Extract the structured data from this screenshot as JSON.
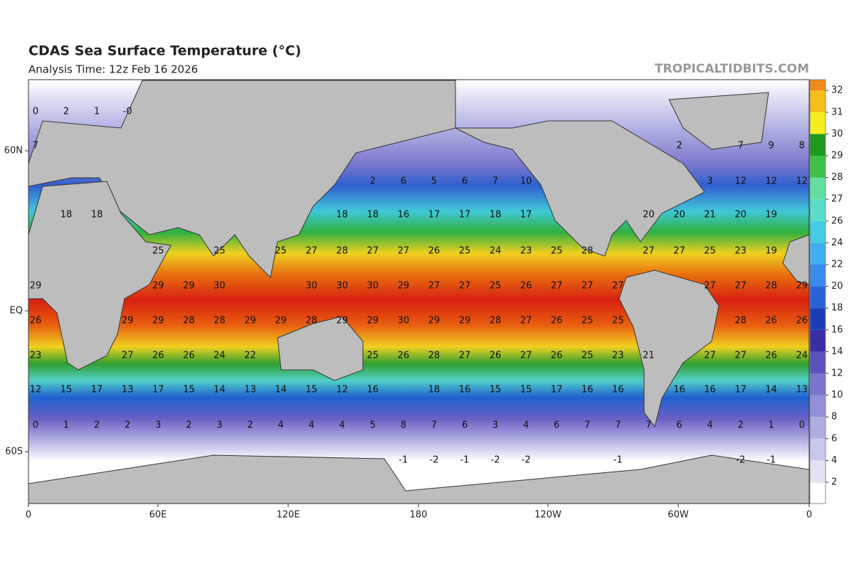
{
  "header": {
    "title": "CDAS Sea Surface Temperature (°C)",
    "subtitle": "Analysis Time: 12z Feb 16 2026",
    "watermark": "TROPICALTIDBITS.COM"
  },
  "map": {
    "x_labels": [
      "0",
      "60E",
      "120E",
      "180",
      "120W",
      "60W",
      "0"
    ],
    "y_labels": [
      "60N",
      "EQ",
      "60S"
    ],
    "labels": [
      [
        0,
        2,
        1,
        "-0"
      ],
      [
        7,
        2,
        7,
        9,
        8
      ],
      [
        2,
        6,
        5,
        6,
        7,
        10,
        3,
        12,
        12,
        12
      ],
      [
        18,
        18,
        18,
        18,
        16,
        17,
        17,
        18,
        17,
        20,
        20,
        21,
        20,
        19
      ],
      [
        25,
        25,
        25,
        27,
        28,
        27,
        27,
        26,
        25,
        24,
        23,
        25,
        28,
        27,
        27,
        25,
        23,
        19
      ],
      [
        29,
        29,
        29,
        30,
        30,
        30,
        30,
        29,
        27,
        27,
        25,
        26,
        27,
        27,
        27,
        27,
        27,
        28,
        29
      ],
      [
        26,
        29,
        29,
        28,
        28,
        29,
        29,
        28,
        29,
        29,
        30,
        29,
        29,
        28,
        27,
        26,
        25,
        25,
        28,
        26,
        26
      ],
      [
        23,
        27,
        26,
        26,
        24,
        22,
        25,
        26,
        28,
        27,
        26,
        27,
        26,
        25,
        23,
        21,
        27,
        27,
        26,
        24
      ],
      [
        12,
        15,
        17,
        13,
        17,
        15,
        14,
        13,
        14,
        15,
        12,
        16,
        18,
        16,
        15,
        15,
        17,
        16,
        16,
        16,
        16,
        17,
        14,
        13
      ],
      [
        0,
        1,
        2,
        2,
        3,
        2,
        3,
        2,
        4,
        4,
        4,
        5,
        8,
        7,
        6,
        3,
        4,
        6,
        7,
        7,
        7,
        6,
        4,
        2,
        1,
        0
      ],
      [
        -1,
        -2,
        -1,
        -2,
        -2,
        -1,
        -2,
        -1
      ]
    ]
  },
  "colorbar": {
    "ticks": [
      2,
      4,
      6,
      8,
      10,
      12,
      14,
      16,
      18,
      20,
      22,
      24,
      26,
      27,
      28,
      29,
      30,
      31,
      32
    ]
  }
}
